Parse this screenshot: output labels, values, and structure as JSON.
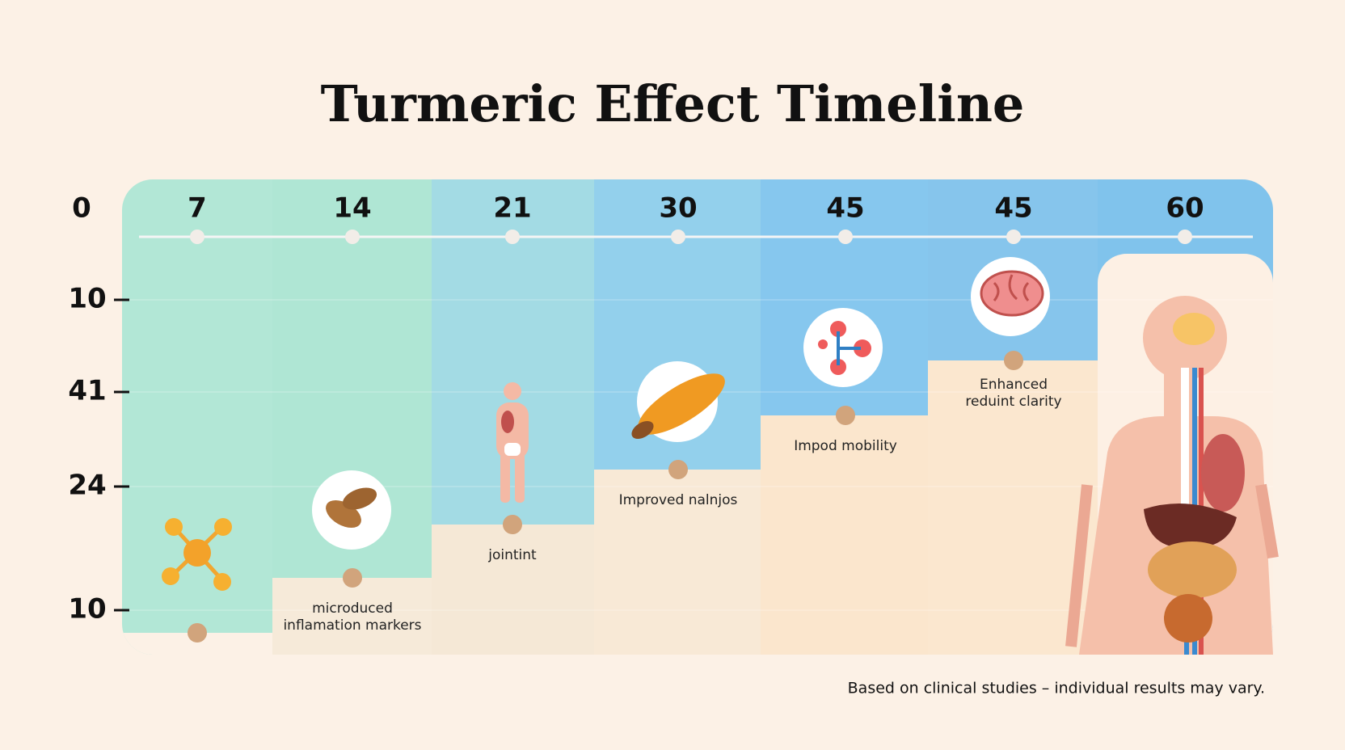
{
  "title": "Turmeric Effect Timeline",
  "timeline_labels": [
    0,
    7,
    14,
    21,
    30,
    45,
    45,
    60
  ],
  "side_labels": [
    10,
    41,
    24,
    10
  ],
  "stage_labels": [
    [
      "microduced",
      "inflamation markers"
    ],
    [
      "jointint"
    ],
    [
      "Improved nalnjos"
    ],
    [
      "Impod mobility"
    ],
    [
      "Enhanced",
      "reduint clarity"
    ]
  ],
  "footnote": "Based on clinical studies – individual results may vary."
}
